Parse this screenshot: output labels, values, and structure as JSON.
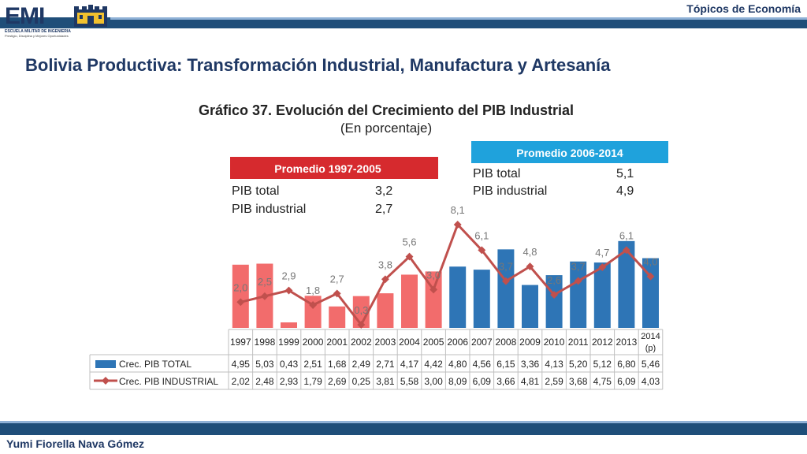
{
  "header": {
    "logo_text": "EMI",
    "logo_sub": "ESCUELA MILITAR DE INGENIERIA",
    "logo_motto": "Prestigio, Disciplina y Mejores Oportunidades",
    "topic": "Tópicos de Economía"
  },
  "slide_title": "Bolivia Productiva: Transformación Industrial, Manufactura y Artesanía",
  "footer": {
    "author": "Yumi Fiorella Nava Gómez"
  },
  "colors": {
    "total_red": "#f26c6c",
    "total_blue": "#2e75b6",
    "industrial_line": "#c0504d",
    "box1": "#d62a2e",
    "box2": "#1fa2dc",
    "brand": "#1f3864"
  },
  "chart_data": {
    "type": "bar",
    "title": "Gráfico 37. Evolución del Crecimiento del PIB Industrial",
    "subtitle": "(En porcentaje)",
    "categories": [
      "1997",
      "1998",
      "1999",
      "2000",
      "2001",
      "2002",
      "2003",
      "2004",
      "2005",
      "2006",
      "2007",
      "2008",
      "2009",
      "2010",
      "2011",
      "2012",
      "2013",
      "2014 (p)"
    ],
    "series": [
      {
        "name": "Crec. PIB TOTAL",
        "type": "bar",
        "values": [
          4.95,
          5.03,
          0.43,
          2.51,
          1.68,
          2.49,
          2.71,
          4.17,
          4.42,
          4.8,
          4.56,
          6.15,
          3.36,
          4.13,
          5.2,
          5.12,
          6.8,
          5.46
        ]
      },
      {
        "name": "Crec. PIB INDUSTRIAL",
        "type": "line",
        "values": [
          2.02,
          2.48,
          2.93,
          1.79,
          2.69,
          0.25,
          3.81,
          5.58,
          3.0,
          8.09,
          6.09,
          3.66,
          4.81,
          2.59,
          3.68,
          4.75,
          6.09,
          4.03
        ]
      }
    ],
    "table_values": {
      "total": [
        "4,95",
        "5,03",
        "0,43",
        "2,51",
        "1,68",
        "2,49",
        "2,71",
        "4,17",
        "4,42",
        "4,80",
        "4,56",
        "6,15",
        "3,36",
        "4,13",
        "5,20",
        "5,12",
        "6,80",
        "5,46"
      ],
      "industrial": [
        "2,02",
        "2,48",
        "2,93",
        "1,79",
        "2,69",
        "0,25",
        "3,81",
        "5,58",
        "3,00",
        "8,09",
        "6,09",
        "3,66",
        "4,81",
        "2,59",
        "3,68",
        "4,75",
        "6,09",
        "4,03"
      ]
    },
    "line_labels": [
      "2,0",
      "2,5",
      "2,9",
      "1,8",
      "2,7",
      "0,3",
      "3,8",
      "5,6",
      "3,0",
      "8,1",
      "6,1",
      "3,7",
      "4,8",
      "2,6",
      "3,7",
      "4,7",
      "6,1",
      "4,0"
    ],
    "ylim": [
      0,
      9
    ],
    "grid": false,
    "legend": "bottom",
    "boxes": [
      {
        "title": "Promedio 1997-2005",
        "rows": [
          {
            "label": "PIB total",
            "value": "3,2"
          },
          {
            "label": "PIB industrial",
            "value": "2,7"
          }
        ]
      },
      {
        "title": "Promedio 2006-2014",
        "rows": [
          {
            "label": "PIB total",
            "value": "5,1"
          },
          {
            "label": "PIB industrial",
            "value": "4,9"
          }
        ]
      }
    ]
  }
}
